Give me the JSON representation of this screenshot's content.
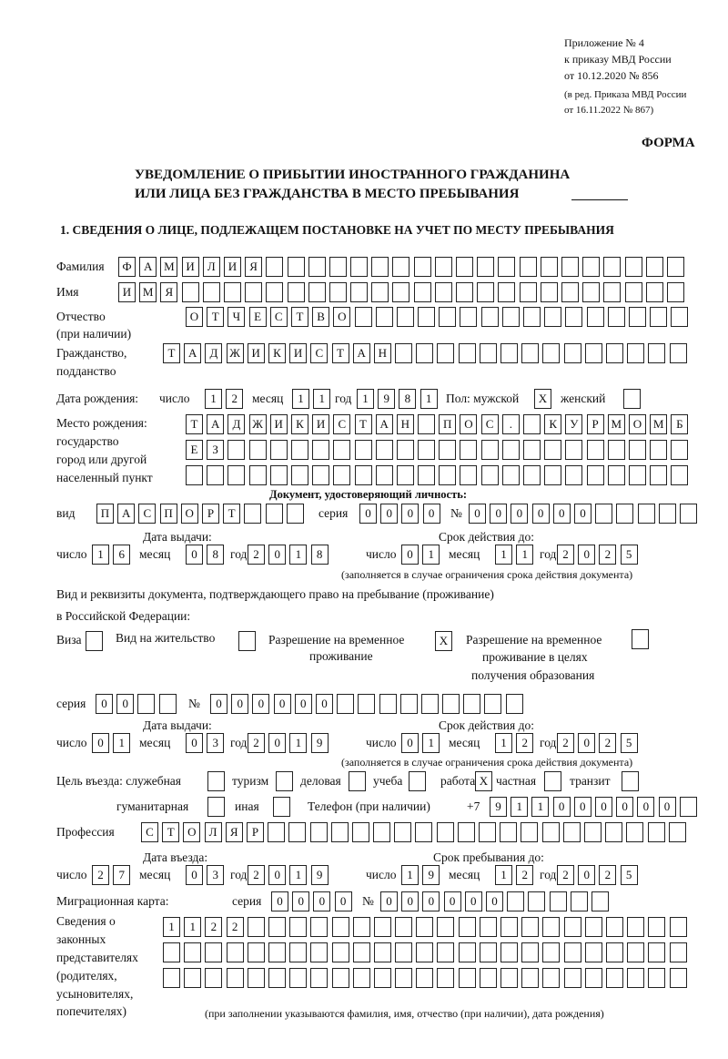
{
  "header": {
    "appendix": [
      "Приложение № 4",
      "к приказу МВД России",
      "от 10.12.2020 № 856"
    ],
    "amendment": [
      "(в ред. Приказа МВД России",
      "от 16.11.2022 № 867)"
    ],
    "forma": "ФОРМА",
    "title_line1": "УВЕДОМЛЕНИЕ О ПРИБЫТИИ ИНОСТРАННОГО ГРАЖДАНИНА",
    "title_line2": "ИЛИ ЛИЦА БЕЗ ГРАЖДАНСТВА В МЕСТО ПРЕБЫВАНИЯ",
    "section1": "1. СВЕДЕНИЯ О ЛИЦЕ, ПОДЛЕЖАЩЕМ ПОСТАНОВКЕ НА УЧЕТ ПО МЕСТУ ПРЕБЫВАНИЯ"
  },
  "person": {
    "surname": {
      "label": "Фамилия",
      "value": "ФАМИЛИЯ"
    },
    "name": {
      "label": "Имя",
      "value": "ИМЯ"
    },
    "patronymic": {
      "label": "Отчество",
      "label2": "(при наличии)",
      "value": "ОТЧЕСТВО"
    },
    "citizenship": {
      "label": "Гражданство,",
      "label2": "подданство",
      "value": "ТАДЖИКИСТАН"
    },
    "birth_date": {
      "label": "Дата рождения:",
      "day_label": "число",
      "day": "12",
      "month_label": "месяц",
      "month": "11",
      "year_label": "год",
      "year": "1981"
    },
    "sex": {
      "label": "Пол: мужской",
      "male": "X",
      "female_label": "женский",
      "female": ""
    },
    "birth_place": {
      "label": [
        "Место рождения:",
        "государство",
        "город или другой",
        "населенный пункт"
      ],
      "line1": "ТАДЖИКИСТАН ПОС. КУРМОМБ",
      "line2": "ЕЗ",
      "line3": ""
    }
  },
  "id_document": {
    "heading": "Документ, удостоверяющий личность:",
    "kind_label": "вид",
    "kind": "ПАСПОРТ",
    "series_label": "серия",
    "series": "0000",
    "number_label": "№",
    "number": "000000",
    "issue_label": "Дата выдачи:",
    "issue": {
      "day_label": "число",
      "day": "16",
      "month_label": "месяц",
      "month": "08",
      "year_label": "год",
      "year": "2018"
    },
    "valid_label": "Срок действия до:",
    "valid": {
      "day_label": "число",
      "day": "01",
      "month_label": "месяц",
      "month": "11",
      "year_label": "год",
      "year": "2025"
    },
    "note": "(заполняется в случае ограничения срока действия документа)"
  },
  "stay_document": {
    "heading1": "Вид и реквизиты документа, подтверждающего право на пребывание (проживание)",
    "heading2": "в Российской Федерации:",
    "visa_label": "Виза",
    "visa": "",
    "residence_label": "Вид на жительство",
    "residence": "",
    "temp_label1": "Разрешение на временное",
    "temp_label2": "проживание",
    "temp": "X",
    "edu_label1": "Разрешение на временное",
    "edu_label2": "проживание в целях",
    "edu_label3": "получения образования",
    "edu": "",
    "series_label": "серия",
    "series": "00",
    "number_label": "№",
    "number": "000000",
    "issue_label": "Дата выдачи:",
    "issue": {
      "day_label": "число",
      "day": "01",
      "month_label": "месяц",
      "month": "03",
      "year_label": "год",
      "year": "2019"
    },
    "valid_label": "Срок действия до:",
    "valid": {
      "day_label": "число",
      "day": "01",
      "month_label": "месяц",
      "month": "12",
      "year_label": "год",
      "year": "2025"
    },
    "note": "(заполняется в случае ограничения срока действия документа)"
  },
  "purpose": {
    "label": "Цель въезда: служебная",
    "official": "",
    "tourism_label": "туризм",
    "tourism": "",
    "business_label": "деловая",
    "business": "",
    "study_label": "учеба",
    "study": "",
    "work_label": "работа",
    "work": "X",
    "private_label": "частная",
    "private": "",
    "transit_label": "транзит",
    "transit": "",
    "humanitarian_label": "гуманитарная",
    "humanitarian": "",
    "other_label": "иная",
    "other": ""
  },
  "phone": {
    "label": "Телефон (при наличии)",
    "prefix": "+7",
    "value": "911000000"
  },
  "profession": {
    "label": "Профессия",
    "value": "СТОЛЯР"
  },
  "entry": {
    "entry_label": "Дата въезда:",
    "entry": {
      "day_label": "число",
      "day": "27",
      "month_label": "месяц",
      "month": "03",
      "year_label": "год",
      "year": "2019"
    },
    "stay_label": "Срок пребывания до:",
    "stay": {
      "day_label": "число",
      "day": "19",
      "month_label": "месяц",
      "month": "12",
      "year_label": "год",
      "year": "2025"
    }
  },
  "migration_card": {
    "label": "Миграционная карта:",
    "series_label": "серия",
    "series": "0000",
    "number_label": "№",
    "number": "000000"
  },
  "representatives": {
    "label": [
      "Сведения о",
      "законных",
      "представителях",
      "(родителях,",
      "усыновителях,",
      "попечителях)"
    ],
    "line1": "1122",
    "line2": "",
    "line3": "",
    "note": "(при заполнении указываются фамилия, имя, отчество (при наличии), дата рождения)"
  }
}
